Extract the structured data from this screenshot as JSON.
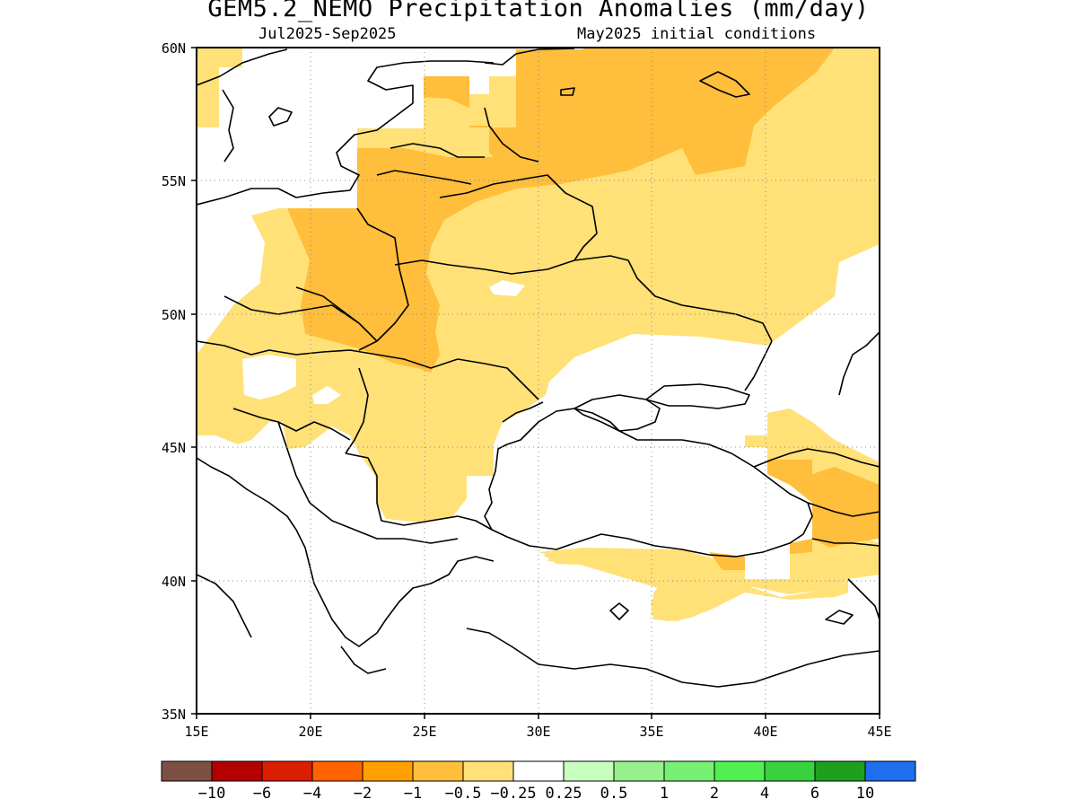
{
  "title": "GEM5.2_NEMO Precipitation Anomalies (mm/day)",
  "period": "Jul2025-Sep2025",
  "init": "May2025 initial conditions",
  "map": {
    "lon_range": [
      15,
      45
    ],
    "lat_range": [
      35,
      60
    ],
    "lon_ticks": [
      "15E",
      "20E",
      "25E",
      "30E",
      "35E",
      "40E",
      "45E"
    ],
    "lat_ticks": [
      "60N",
      "55N",
      "50N",
      "45N",
      "40N",
      "35N"
    ],
    "grid": "dotted"
  },
  "colorbar": {
    "colors": [
      "#7d5044",
      "#b40000",
      "#dc1e00",
      "#ff6400",
      "#ffa000",
      "#ffbe3c",
      "#ffe178",
      "#ffffff",
      "#c8ffbe",
      "#96f08c",
      "#78f073",
      "#50f050",
      "#37d23c",
      "#1ea01e",
      "#1e6ef0"
    ],
    "labels": [
      "-10",
      "-6",
      "-4",
      "-2",
      "-1",
      "-0.5",
      "-0.25",
      "0.25",
      "0.5",
      "1",
      "2",
      "4",
      "6",
      "10"
    ]
  },
  "anomaly_regions": [
    {
      "class": "-0.25 to -0.5",
      "color": "#ffe178",
      "description": "broad light-orange dryness over Ukraine, Belarus, western Russia, Poland, Romania, Bulgaria and northern Turkey"
    },
    {
      "class": "-0.5 to -1",
      "color": "#ffbe3c",
      "description": "orange dryness over eastern Poland, western Ukraine, the Baltics, central Russia and the eastern Black Sea coast"
    }
  ]
}
